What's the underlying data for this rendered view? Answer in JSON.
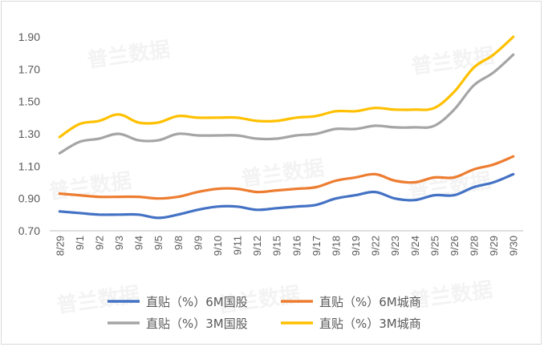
{
  "chart_data": {
    "type": "line",
    "title": "",
    "xlabel": "",
    "ylabel": "",
    "ylim": [
      0.7,
      1.9
    ],
    "yticks": [
      "0.70",
      "0.90",
      "1.10",
      "1.30",
      "1.50",
      "1.70",
      "1.90"
    ],
    "categories": [
      "8/29",
      "9/1",
      "9/2",
      "9/3",
      "9/4",
      "9/5",
      "9/8",
      "9/9",
      "9/10",
      "9/11",
      "9/12",
      "9/15",
      "9/16",
      "9/17",
      "9/18",
      "9/19",
      "9/22",
      "9/23",
      "9/24",
      "9/25",
      "9/26",
      "9/28",
      "9/29",
      "9/30"
    ],
    "series": [
      {
        "name": "直贴（%）6M国股",
        "color": "#4472c4",
        "values": [
          0.82,
          0.81,
          0.8,
          0.8,
          0.8,
          0.78,
          0.8,
          0.83,
          0.85,
          0.85,
          0.83,
          0.84,
          0.85,
          0.86,
          0.9,
          0.92,
          0.94,
          0.9,
          0.89,
          0.92,
          0.92,
          0.97,
          1.0,
          1.05
        ]
      },
      {
        "name": "直贴（%）6M城商",
        "color": "#ed7d31",
        "values": [
          0.93,
          0.92,
          0.91,
          0.91,
          0.91,
          0.9,
          0.91,
          0.94,
          0.96,
          0.96,
          0.94,
          0.95,
          0.96,
          0.97,
          1.01,
          1.03,
          1.05,
          1.01,
          1.0,
          1.03,
          1.03,
          1.08,
          1.11,
          1.16
        ]
      },
      {
        "name": "直贴（%）3M国股",
        "color": "#a5a5a5",
        "values": [
          1.18,
          1.25,
          1.27,
          1.3,
          1.26,
          1.26,
          1.3,
          1.29,
          1.29,
          1.29,
          1.27,
          1.27,
          1.29,
          1.3,
          1.33,
          1.33,
          1.35,
          1.34,
          1.34,
          1.35,
          1.45,
          1.6,
          1.68,
          1.79
        ]
      },
      {
        "name": "直贴（%）3M城商",
        "color": "#ffc000",
        "values": [
          1.28,
          1.36,
          1.38,
          1.42,
          1.37,
          1.37,
          1.41,
          1.4,
          1.4,
          1.4,
          1.38,
          1.38,
          1.4,
          1.41,
          1.44,
          1.44,
          1.46,
          1.45,
          1.45,
          1.46,
          1.56,
          1.71,
          1.79,
          1.9
        ]
      }
    ],
    "legend_position": "bottom",
    "grid": false
  },
  "watermark": "普兰数据"
}
